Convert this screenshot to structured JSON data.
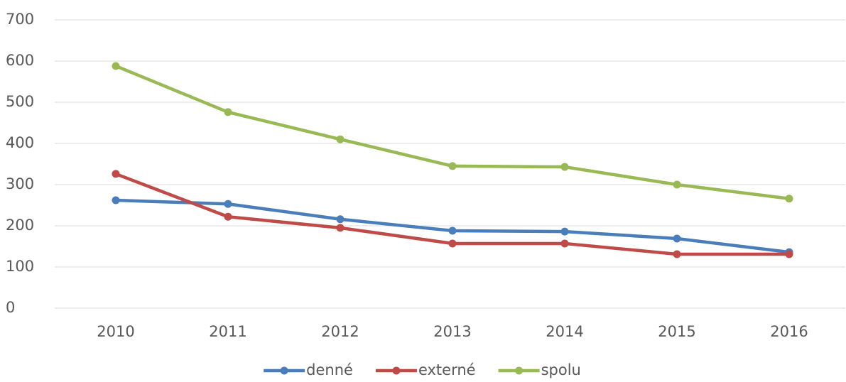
{
  "chart_data": {
    "type": "line",
    "categories": [
      "2010",
      "2011",
      "2012",
      "2013",
      "2014",
      "2015",
      "2016"
    ],
    "series": [
      {
        "name": "denné",
        "color": "#4a7ebb",
        "values": [
          262,
          253,
          216,
          188,
          186,
          169,
          136
        ]
      },
      {
        "name": "externé",
        "color": "#be4b48",
        "values": [
          326,
          222,
          195,
          157,
          157,
          131,
          131
        ]
      },
      {
        "name": "spolu",
        "color": "#98b954",
        "values": [
          588,
          476,
          410,
          345,
          343,
          300,
          266
        ]
      }
    ],
    "ylim": [
      0,
      700
    ],
    "yticks": [
      0,
      100,
      200,
      300,
      400,
      500,
      600,
      700
    ],
    "grid": true,
    "legend": "bottom"
  }
}
